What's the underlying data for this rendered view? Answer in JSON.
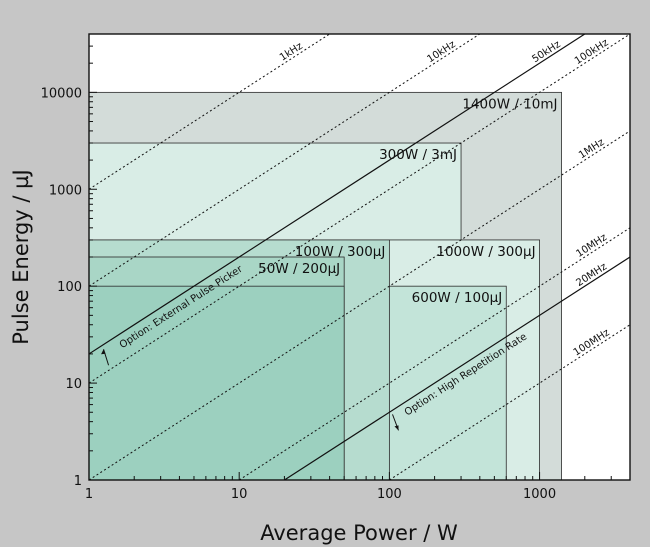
{
  "chart_data": {
    "type": "area",
    "xlabel": "Average Power / W",
    "ylabel": "Pulse Energy / µJ",
    "xscale": "log",
    "yscale": "log",
    "xlim": [
      1,
      4000
    ],
    "ylim": [
      1,
      40000
    ],
    "grid": false,
    "x_ticks": [
      {
        "value": 1,
        "label": "1"
      },
      {
        "value": 10,
        "label": "10"
      },
      {
        "value": 100,
        "label": "100"
      },
      {
        "value": 1000,
        "label": "1000"
      }
    ],
    "y_ticks": [
      {
        "value": 1,
        "label": "1"
      },
      {
        "value": 10,
        "label": "10"
      },
      {
        "value": 100,
        "label": "100"
      },
      {
        "value": 1000,
        "label": "1000"
      },
      {
        "value": 10000,
        "label": "10000"
      }
    ],
    "regions": [
      {
        "label": "1400W / 10mJ",
        "power_w": 1400,
        "energy_uj": 10000,
        "color": "#d3dcd9"
      },
      {
        "label": "300W / 3mJ",
        "power_w": 300,
        "energy_uj": 3000,
        "color": "#d9ede6"
      },
      {
        "label": "1000W / 300µJ",
        "power_w": 1000,
        "energy_uj": 300,
        "color": "#d9ede6"
      },
      {
        "label": "600W / 100µJ",
        "power_w": 600,
        "energy_uj": 100,
        "color": "#c3e4d9"
      },
      {
        "label": "100W / 300µJ",
        "power_w": 100,
        "energy_uj": 300,
        "color": "#b6dccf"
      },
      {
        "label": "50W / 200µJ",
        "power_w": 50,
        "energy_uj": 200,
        "color": "#a9d6c6"
      },
      {
        "label": "",
        "power_w": 50,
        "energy_uj": 100,
        "color": "#9cd0bf"
      }
    ],
    "repetition_rates": [
      {
        "label": "1kHz",
        "rate_hz": 1000,
        "style": "dotted"
      },
      {
        "label": "10kHz",
        "rate_hz": 10000,
        "style": "dotted"
      },
      {
        "label": "50kHz",
        "rate_hz": 50000,
        "style": "solid"
      },
      {
        "label": "100kHz",
        "rate_hz": 100000,
        "style": "dotted"
      },
      {
        "label": "1MHz",
        "rate_hz": 1000000,
        "style": "dotted"
      },
      {
        "label": "10MHz",
        "rate_hz": 10000000,
        "style": "dotted"
      },
      {
        "label": "20MHz",
        "rate_hz": 20000000,
        "style": "solid"
      },
      {
        "label": "100MHz",
        "rate_hz": 100000000,
        "style": "dotted"
      }
    ],
    "annotations": [
      {
        "text": "Option: External Pulse Picker"
      },
      {
        "text": "Option: High Repetition Rate"
      }
    ]
  }
}
